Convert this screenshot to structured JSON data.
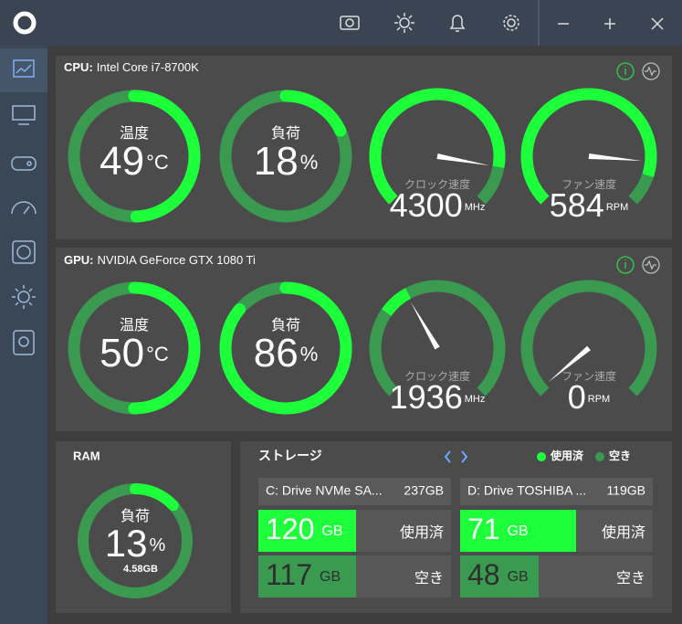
{
  "cpu": {
    "label": "CPU:",
    "name": "Intel Core i7-8700K",
    "gauges": [
      {
        "label": "温度",
        "value": 49,
        "unit": "°C"
      },
      {
        "label": "負荷",
        "value": 18,
        "unit": "%"
      },
      {
        "label": "クロック速度",
        "value": 4300,
        "unit": "MHz"
      },
      {
        "label": "ファン速度",
        "value": 584,
        "unit": "RPM"
      }
    ]
  },
  "gpu": {
    "label": "GPU:",
    "name": "NVIDIA GeForce GTX 1080 Ti",
    "gauges": [
      {
        "label": "温度",
        "value": 50,
        "unit": "°C"
      },
      {
        "label": "負荷",
        "value": 86,
        "unit": "%"
      },
      {
        "label": "クロック速度",
        "value": 1936,
        "unit": "MHz"
      },
      {
        "label": "ファン速度",
        "value": 0,
        "unit": "RPM"
      }
    ]
  },
  "ram": {
    "title": "RAM",
    "label": "負荷",
    "value": 13,
    "unit": "%",
    "detail": "4.58GB"
  },
  "storage": {
    "title": "ストレージ",
    "legend": [
      "使用済",
      "空き"
    ],
    "drives": [
      {
        "name": "C: Drive NVMe SA...",
        "size": "237GB",
        "used": 120,
        "free": 117,
        "unit": "GB"
      },
      {
        "name": "D: Drive TOSHIBA ...",
        "size": "119GB",
        "used": 71,
        "free": 48,
        "unit": "GB"
      }
    ]
  }
}
